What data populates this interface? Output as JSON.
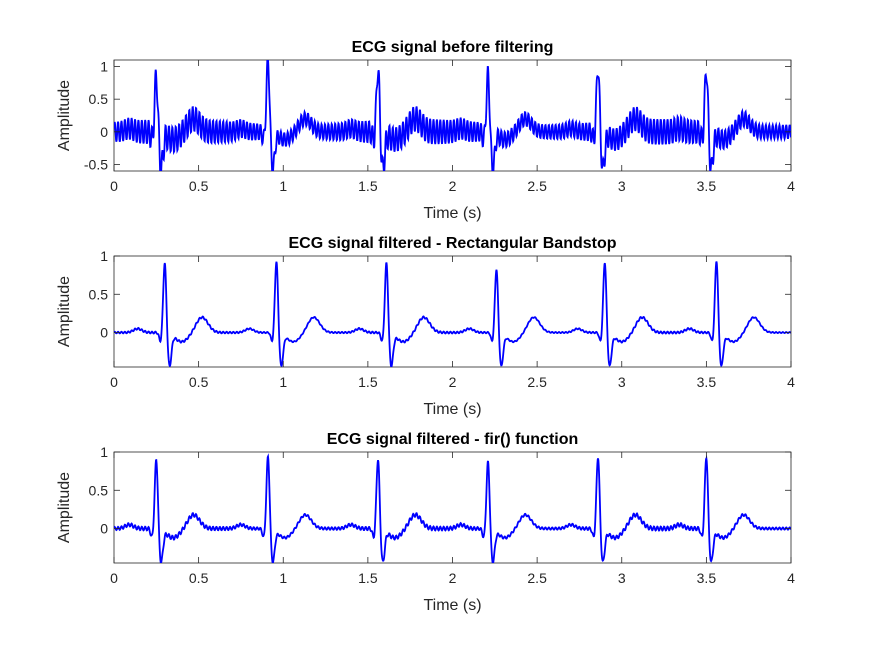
{
  "colors": {
    "signal": "#0000ff",
    "axes": "#262626",
    "background": "#ffffff"
  },
  "chart_data": [
    {
      "type": "line",
      "title": "ECG signal before filtering",
      "xlabel": "Time (s)",
      "ylabel": "Amplitude",
      "xlim": [
        0,
        4
      ],
      "ylim": [
        -0.6,
        1.1
      ],
      "xticks": [
        0,
        0.5,
        1,
        1.5,
        2,
        2.5,
        3,
        3.5,
        4
      ],
      "xtick_labels": [
        "0",
        "0.5",
        "1",
        "1.5",
        "2",
        "2.5",
        "3",
        "3.5",
        "4"
      ],
      "yticks": [
        -0.5,
        0,
        0.5,
        1
      ],
      "ytick_labels": [
        "-0.5",
        "0",
        "0.5",
        "1"
      ],
      "grid": false,
      "signal": {
        "sample_rate_hz": 500,
        "r_peaks_s": [
          0.25,
          0.91,
          1.56,
          2.21,
          2.86,
          3.5
        ],
        "r_peak_amplitudes": [
          0.88,
          1.12,
          1.0,
          0.9,
          1.02,
          0.98
        ],
        "s_trough": -0.55,
        "t_wave_amplitude": 0.2,
        "noise_amplitude": 0.15,
        "noise_frequency_hz": 50
      }
    },
    {
      "type": "line",
      "title": "ECG signal filtered - Rectangular Bandstop",
      "xlabel": "Time (s)",
      "ylabel": "Amplitude",
      "xlim": [
        0,
        4
      ],
      "ylim": [
        -0.45,
        1.0
      ],
      "xticks": [
        0,
        0.5,
        1,
        1.5,
        2,
        2.5,
        3,
        3.5,
        4
      ],
      "xtick_labels": [
        "0",
        "0.5",
        "1",
        "1.5",
        "2",
        "2.5",
        "3",
        "3.5",
        "4"
      ],
      "yticks": [
        0,
        0.5,
        1
      ],
      "ytick_labels": [
        "0",
        "0.5",
        "1"
      ],
      "grid": false,
      "signal": {
        "sample_rate_hz": 500,
        "r_peaks_s": [
          0.3,
          0.96,
          1.61,
          2.26,
          2.9,
          3.56
        ],
        "r_peak_amplitudes": [
          0.93,
          0.95,
          0.93,
          0.85,
          0.94,
          0.96
        ],
        "s_trough": -0.42,
        "t_wave_amplitude": 0.2,
        "noise_amplitude": 0.01,
        "noise_frequency_hz": 50
      }
    },
    {
      "type": "line",
      "title": "ECG signal filtered - fir() function",
      "xlabel": "Time (s)",
      "ylabel": "Amplitude",
      "xlim": [
        0,
        4
      ],
      "ylim": [
        -0.45,
        1.0
      ],
      "xticks": [
        0,
        0.5,
        1,
        1.5,
        2,
        2.5,
        3,
        3.5,
        4
      ],
      "xtick_labels": [
        "0",
        "0.5",
        "1",
        "1.5",
        "2",
        "2.5",
        "3",
        "3.5",
        "4"
      ],
      "yticks": [
        0,
        0.5,
        1
      ],
      "ytick_labels": [
        "0",
        "0.5",
        "1"
      ],
      "grid": false,
      "signal": {
        "sample_rate_hz": 500,
        "r_peaks_s": [
          0.25,
          0.91,
          1.56,
          2.21,
          2.86,
          3.5
        ],
        "r_peak_amplitudes": [
          0.92,
          0.96,
          0.93,
          0.89,
          0.96,
          0.96
        ],
        "s_trough": -0.42,
        "t_wave_amplitude": 0.18,
        "noise_amplitude": 0.02,
        "noise_frequency_hz": 50
      }
    }
  ]
}
